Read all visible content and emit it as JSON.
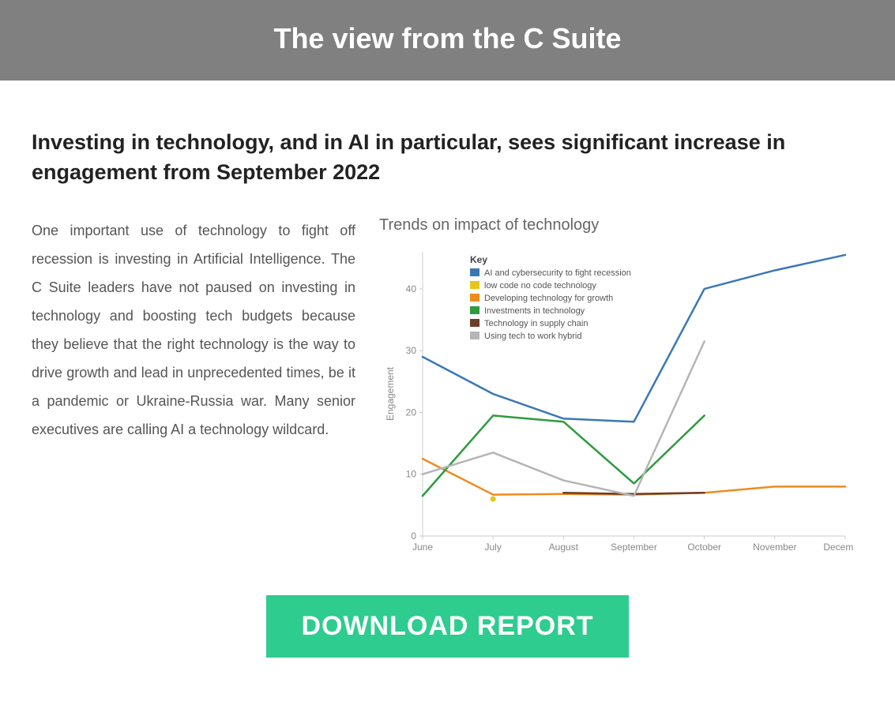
{
  "header": {
    "title": "The view from the C Suite"
  },
  "subhead": "Investing in technology, and in AI in particular, sees significant increase in engagement from September 2022",
  "body_paragraph": "One important use of technology to fight off recession is investing in Artificial Intelligence. The C Suite leaders have not paused on investing in technology and boosting tech budgets because they believe that the right technology is the way to drive growth and lead in unprecedented times, be it a pandemic or Ukraine-Russia war. Many senior executives are calling AI a technology wildcard.",
  "cta": {
    "label": "DOWNLOAD REPORT",
    "bg": "#2ecc8f",
    "text_color": "#ffffff"
  },
  "chart": {
    "type": "line",
    "title": "Trends on impact of technology",
    "title_color": "#666666",
    "title_fontsize": 20,
    "background_color": "#ffffff",
    "axis_color": "#cccccc",
    "tick_label_color": "#888888",
    "tick_fontsize": 12,
    "y_axis_label": "Engagement",
    "y_axis_label_fontsize": 11,
    "ylim": [
      0,
      46
    ],
    "yticks": [
      0,
      10,
      20,
      30,
      40
    ],
    "x_categories": [
      "June",
      "July",
      "August",
      "September",
      "October",
      "November",
      "December"
    ],
    "legend": {
      "title": "Key",
      "position": "upper-center",
      "title_fontsize": 12,
      "item_fontsize": 11
    },
    "line_width": 2.5,
    "series": [
      {
        "name": "AI and cybersecurity to fight recession",
        "color": "#3a78b5",
        "values": [
          29,
          23,
          19,
          18.5,
          40,
          43,
          45.5
        ]
      },
      {
        "name": "low code no code technology",
        "color": "#e6c617",
        "values": [
          null,
          6,
          null,
          null,
          null,
          null,
          null
        ],
        "marker_only": true
      },
      {
        "name": "Developing technology for growth",
        "color": "#ef8b1d",
        "values": [
          12.5,
          6.7,
          6.8,
          6.7,
          7,
          8,
          8
        ]
      },
      {
        "name": "Investments in technology",
        "color": "#2e9b3e",
        "values": [
          6.5,
          19.5,
          18.5,
          8.5,
          19.5,
          null,
          null
        ]
      },
      {
        "name": "Technology in supply chain",
        "color": "#6b3f2a",
        "values": [
          null,
          null,
          7,
          6.8,
          7,
          null,
          null
        ]
      },
      {
        "name": "Using tech to work hybrid",
        "color": "#b5b5b5",
        "values": [
          10,
          13.5,
          9,
          6.5,
          31.5,
          null,
          null
        ]
      }
    ]
  }
}
